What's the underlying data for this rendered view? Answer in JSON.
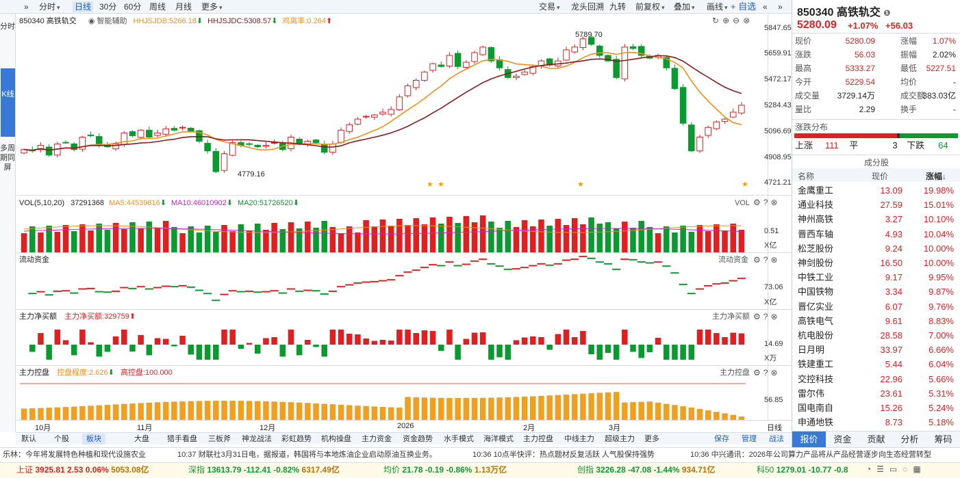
{
  "toolbar": {
    "left": [
      "»",
      "分时",
      "日线",
      "30分",
      "60分",
      "周线",
      "月线",
      "更多"
    ],
    "right": [
      "交易",
      "龙头回溯",
      "九转",
      "前复权",
      "叠加",
      "画线",
      "+ 自选",
      "«",
      "»"
    ],
    "selected": "日线"
  },
  "left_strip": {
    "top": "分时",
    "ktab": "K线",
    "bottom": "多周期同屏"
  },
  "main_chart": {
    "title": "850340 高铁轨交",
    "assist": "智能辅助",
    "hhjsjdb": "HHJSJDB:5266.18",
    "hhjsjdc": "HHJSJDC:5308.57",
    "rate": "鸡离率:0.264",
    "high_label": "5789.70",
    "low_label": "4779.16",
    "yticks": [
      "5847.65",
      "5659.91",
      "5472.17",
      "5284.43",
      "5096.69",
      "4908.95",
      "4721.21"
    ],
    "xticks": [
      "10月",
      "11月",
      "12月",
      "2026",
      "2月",
      "3月"
    ],
    "timeframe": "日线"
  },
  "vol": {
    "title": "VOL(5,10,20)",
    "value": "37291368",
    "ma5": "MA5:44539816",
    "ma10": "MA10:46010902",
    "ma20": "MA20:51726520",
    "right": "VOL",
    "ytick": "0.51",
    "unit": "X亿"
  },
  "flow": {
    "title": "流动资金",
    "right": "流动资金",
    "ytick": "73.06",
    "unit": "X亿"
  },
  "net": {
    "title": "主力净买额",
    "value": "主力净买额:329759",
    "right": "主力净买额",
    "ytick": "14.69",
    "unit": "X万"
  },
  "ctrl": {
    "title": "主力控盘",
    "degree": "控盘程度:2.626",
    "high": "高控盘:100.000",
    "right": "主力控盘",
    "ytick": "56.85"
  },
  "bottom_tabs": [
    "默认",
    "个股",
    "板块",
    "大盘",
    "猎手看盘",
    "三板斧",
    "神龙战法",
    "彩虹趋势",
    "机构操盘",
    "主力资金",
    "资金趋势",
    "水手模式",
    "海洋模式",
    "主力控盘",
    "中线主力",
    "超级主力",
    "更多"
  ],
  "bottom_right": [
    "保存",
    "管理",
    "战法"
  ],
  "news": [
    "乐林：今年将发展特色种植和现代设施农业",
    "10:37 财联社3月31日电，据报道，韩国将与本地炼油企业启动原油互换业务。",
    "10:36 10点半快评：热点题材反复活跃 人气股保持强势",
    "10:36 中兴通讯：2026年公司算力产品将从产品经营逐步向生态经营转型"
  ],
  "indices": [
    {
      "name": "上证",
      "val": "3925.81",
      "chg": "2.53",
      "pct": "0.06%",
      "amt": "5053.08亿",
      "up": true
    },
    {
      "name": "深指",
      "val": "13613.79",
      "chg": "-112.41",
      "pct": "-0.82%",
      "amt": "6317.49亿",
      "up": false
    },
    {
      "name": "均价",
      "val": "21.78",
      "chg": "-0.19",
      "pct": "-0.86%",
      "amt": "1.13万亿",
      "up": false
    },
    {
      "name": "创指",
      "val": "3226.28",
      "chg": "-47.08",
      "pct": "-1.44%",
      "amt": "934.71亿",
      "up": false
    },
    {
      "name": "科50",
      "val": "1279.01",
      "chg": "-10.77",
      "pct": "-0.8",
      "amt": "",
      "up": false
    }
  ],
  "quote": {
    "code_name": "850340 高铁轨交",
    "price": "5280.09",
    "pct": "+1.07%",
    "chg": "+56.03",
    "rows": [
      [
        "现价",
        "5280.09",
        "涨幅",
        "1.07%"
      ],
      [
        "涨跌",
        "56.03",
        "振幅",
        "2.02%"
      ],
      [
        "最高",
        "5333.27",
        "最低",
        "5227.51"
      ],
      [
        "今开",
        "5229.54",
        "均价",
        "-"
      ],
      [
        "成交量",
        "3729.14万",
        "成交额",
        "383.03亿"
      ],
      [
        "量比",
        "2.29",
        "换手",
        "-"
      ]
    ],
    "dist_title": "涨跌分布",
    "up_label": "上涨",
    "up": "111",
    "flat_label": "平",
    "flat": "3",
    "down_label": "下跌",
    "down": "64",
    "comp_title": "成分股",
    "head": [
      "名称",
      "现价",
      "涨幅"
    ],
    "stocks": [
      [
        "金鹰重工",
        "13.09",
        "19.98%"
      ],
      [
        "通业科技",
        "27.59",
        "15.01%"
      ],
      [
        "神州高铁",
        "3.27",
        "10.10%"
      ],
      [
        "晋西车轴",
        "4.93",
        "10.04%"
      ],
      [
        "松芝股份",
        "9.24",
        "10.00%"
      ],
      [
        "神剑股份",
        "16.50",
        "10.00%"
      ],
      [
        "中铁工业",
        "9.17",
        "9.95%"
      ],
      [
        "中国铁物",
        "3.34",
        "9.87%"
      ],
      [
        "晋亿实业",
        "6.07",
        "9.76%"
      ],
      [
        "高铁电气",
        "9.61",
        "8.83%"
      ],
      [
        "杭电股份",
        "28.58",
        "7.00%"
      ],
      [
        "日月明",
        "33.97",
        "6.66%"
      ],
      [
        "铁建重工",
        "5.44",
        "6.04%"
      ],
      [
        "交控科技",
        "22.96",
        "5.66%"
      ],
      [
        "雷尔伟",
        "23.61",
        "5.31%"
      ],
      [
        "国电南自",
        "15.26",
        "5.24%"
      ],
      [
        "申通地铁",
        "8.73",
        "5.18%"
      ]
    ],
    "tabs": [
      "报价",
      "资金",
      "贡献",
      "分析",
      "筹码"
    ]
  },
  "chart_data": {
    "type": "candlestick",
    "series_close_approx": [
      4960,
      4950,
      4990,
      4920,
      5000,
      5010,
      4960,
      5050,
      5060,
      4990,
      4980,
      5000,
      5080,
      5060,
      5100,
      5050,
      5080,
      5110,
      5100,
      5120,
      5090,
      5020,
      4950,
      4800,
      4930,
      5010,
      4990,
      5000,
      4980,
      4990,
      5010,
      4960,
      5050,
      5000,
      5020,
      5010,
      4940,
      5000,
      5100,
      5140,
      5180,
      5200,
      5210,
      5230,
      5250,
      5340,
      5420,
      5460,
      5520,
      5580,
      5560,
      5640,
      5560,
      5590,
      5660,
      5700,
      5600,
      5550,
      5480,
      5490,
      5520,
      5560,
      5600,
      5570,
      5600,
      5680,
      5700,
      5760,
      5720,
      5640,
      5600,
      5480,
      5700,
      5690,
      5640,
      5620,
      5640,
      5550,
      5400,
      5150,
      4950,
      5050,
      5120,
      5160,
      5180,
      5230,
      5280
    ],
    "ylim": [
      4721.21,
      5847.65
    ]
  }
}
